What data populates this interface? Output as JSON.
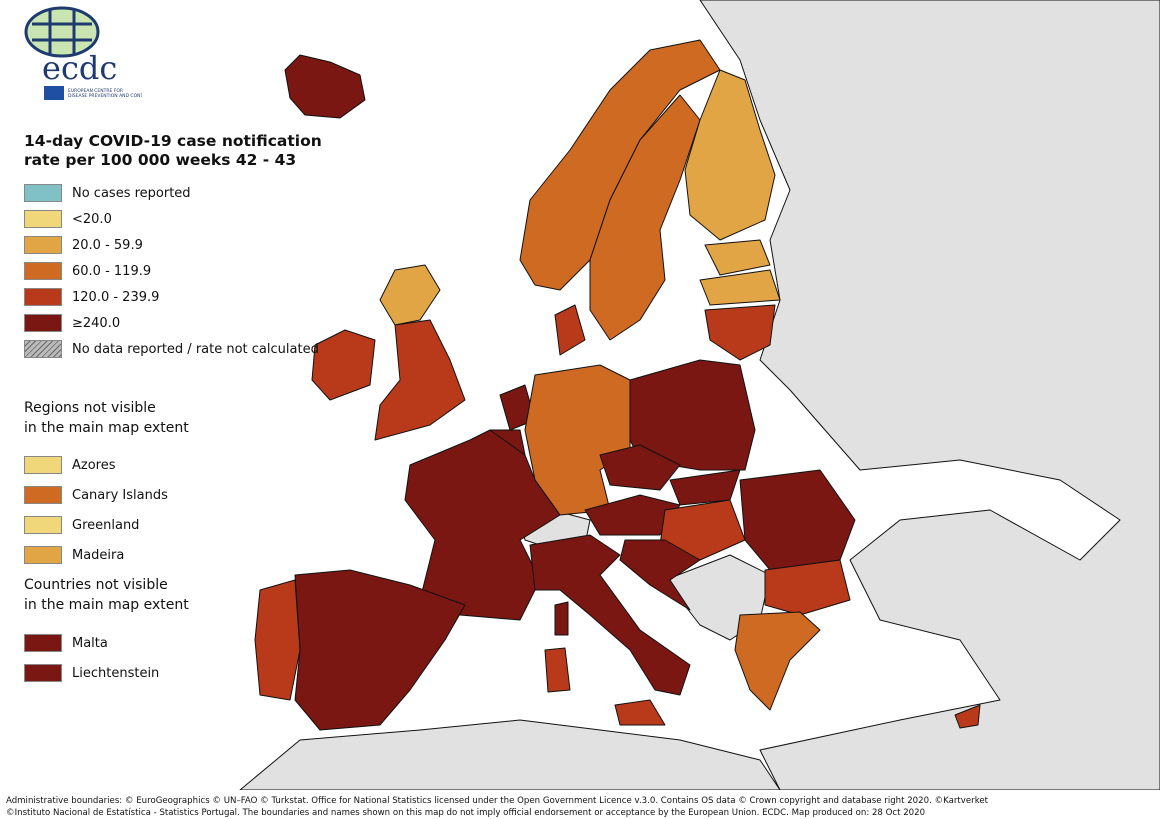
{
  "logo": {
    "text": "ecdc",
    "subtitle": "EUROPEAN CENTRE FOR DISEASE PREVENTION AND CONTROL"
  },
  "title_line1": "14-day COVID-19 case notification",
  "title_line2": "rate per 100 000 weeks 42 - 43",
  "legend": [
    {
      "label": "No cases reported",
      "color": "#80c1c6"
    },
    {
      "label": "<20.0",
      "color": "#f0d77a"
    },
    {
      "label": "20.0 - 59.9",
      "color": "#e2a545"
    },
    {
      "label": "60.0 - 119.9",
      "color": "#cf6a22"
    },
    {
      "label": "120.0 - 239.9",
      "color": "#b83a1a"
    },
    {
      "label": "≥240.0",
      "color": "#7a1712"
    },
    {
      "label": "No data reported / rate not calculated",
      "color": "hatch"
    }
  ],
  "regions_heading_line1": "Regions not visible",
  "regions_heading_line2": "in the main map extent",
  "regions": [
    {
      "label": "Azores",
      "color": "#f0d77a"
    },
    {
      "label": "Canary Islands",
      "color": "#cf6a22"
    },
    {
      "label": "Greenland",
      "color": "#f0d77a"
    },
    {
      "label": "Madeira",
      "color": "#e2a545"
    }
  ],
  "countries_heading_line1": "Countries not visible",
  "countries_heading_line2": "in the main map extent",
  "countries": [
    {
      "label": "Malta",
      "color": "#7a1712"
    },
    {
      "label": "Liechtenstein",
      "color": "#7a1712"
    }
  ],
  "colors": {
    "sea": "#ffffff",
    "non_eu": "#e1e1e1",
    "border": "#111111"
  },
  "footer_line1": "Administrative boundaries: © EuroGeographics © UN–FAO © Turkstat. Office for National Statistics licensed under the Open Government Licence v.3.0. Contains OS data © Crown copyright and database right 2020. ©Kartverket",
  "footer_line2": "©Instituto Nacional de Estatística - Statistics Portugal. The boundaries and names shown on this map do not imply official endorsement or acceptance by the European Union. ECDC. Map produced on: 28 Oct 2020"
}
